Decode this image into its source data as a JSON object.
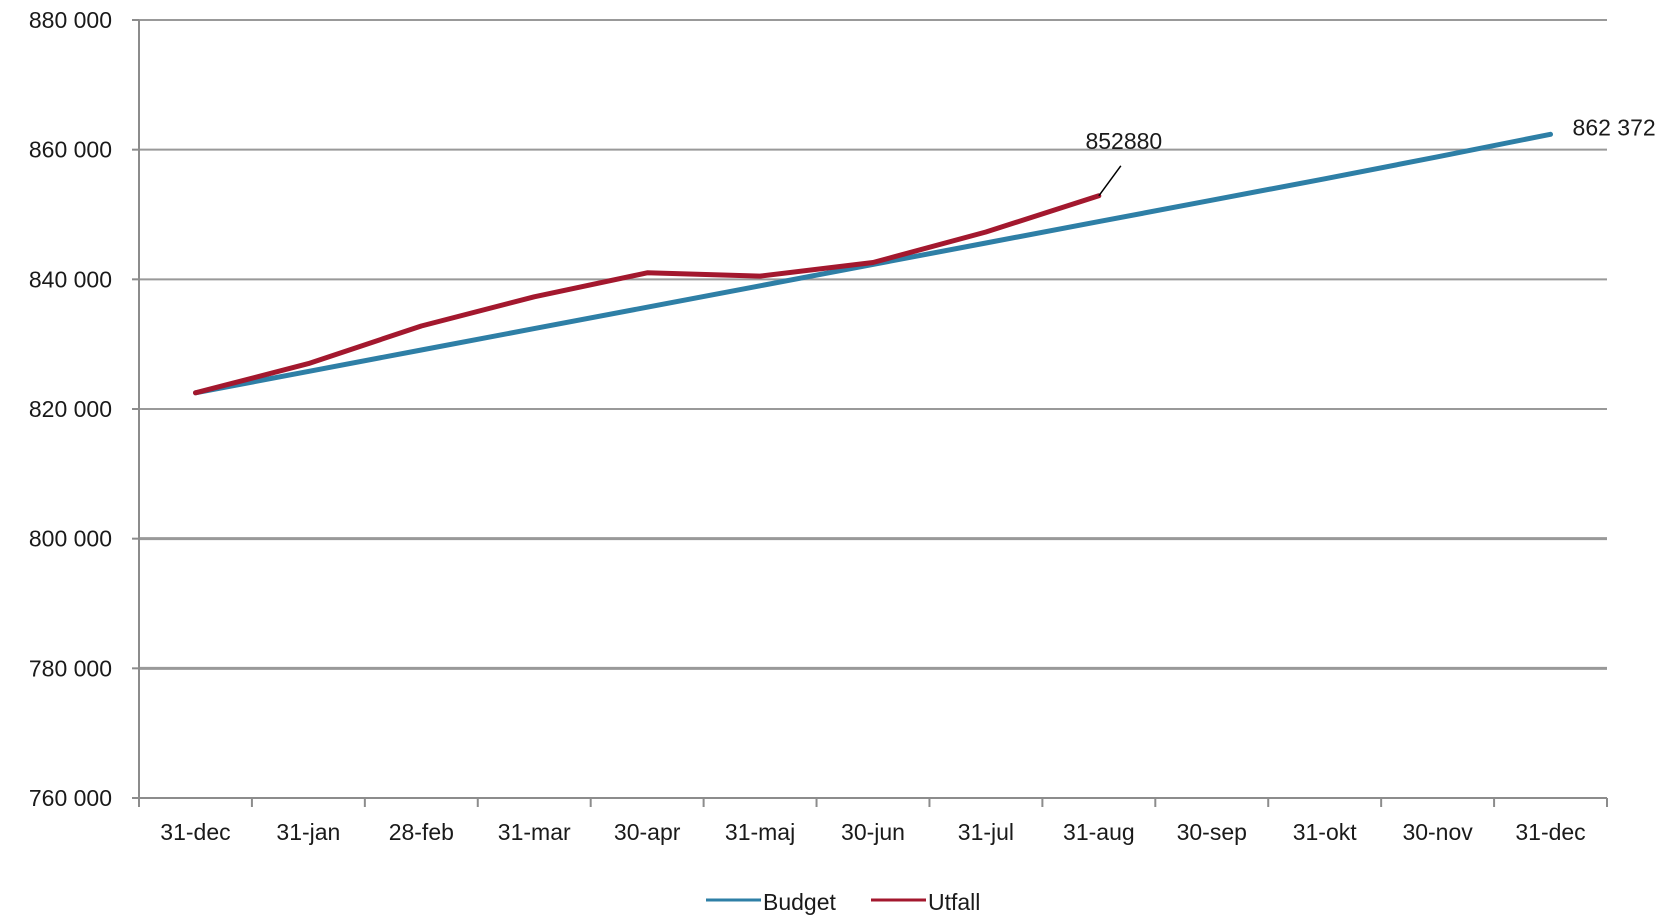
{
  "chart_data": {
    "type": "line",
    "categories": [
      "31-dec",
      "31-jan",
      "28-feb",
      "31-mar",
      "30-apr",
      "31-maj",
      "30-jun",
      "31-jul",
      "31-aug",
      "30-sep",
      "31-okt",
      "30-nov",
      "31-dec"
    ],
    "series": [
      {
        "name": "Budget",
        "color": "#2e7fa6",
        "values": [
          822500,
          825800,
          829100,
          832400,
          835700,
          839000,
          842300,
          845600,
          848900,
          852200,
          855500,
          858900,
          862372
        ]
      },
      {
        "name": "Utfall",
        "color": "#a3182e",
        "values": [
          822500,
          827000,
          832800,
          837300,
          841000,
          840500,
          842600,
          847300,
          852880,
          null,
          null,
          null,
          null
        ]
      }
    ],
    "y_ticks": [
      "760 000",
      "780 000",
      "800 000",
      "820 000",
      "840 000",
      "860 000",
      "880 000"
    ],
    "ylim": [
      760000,
      880000
    ],
    "annotations": [
      {
        "series": "Utfall",
        "index": 8,
        "text": "852880"
      },
      {
        "series": "Budget",
        "index": 12,
        "text": "862 372"
      }
    ],
    "title": "",
    "xlabel": "",
    "ylabel": "",
    "grid": true,
    "legend": "bottom-center",
    "colors": {
      "gridline": "#999999",
      "axis": "#8c8c8c",
      "text": "#1a1a1a"
    }
  }
}
